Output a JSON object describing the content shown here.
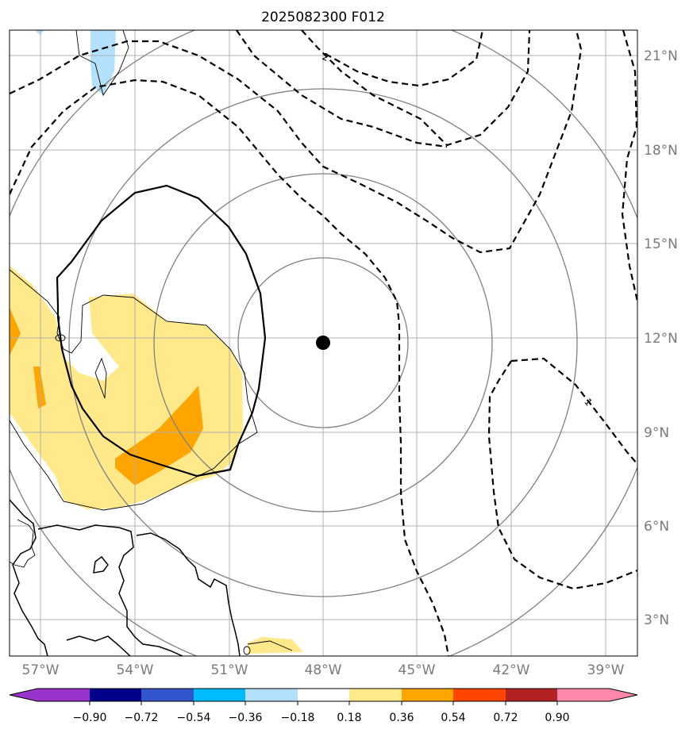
{
  "title": "2025082300 F012",
  "lon_labels": [
    "57°W",
    "54°W",
    "51°W",
    "48°W",
    "45°W",
    "42°W",
    "39°W"
  ],
  "lat_labels": [
    "21°N",
    "18°N",
    "15°N",
    "12°N",
    "9°N",
    "6°N",
    "3°N"
  ],
  "colorbar": {
    "tick_labels": [
      "−0.90",
      "−0.72",
      "−0.54",
      "−0.36",
      "−0.18",
      "0.18",
      "0.36",
      "0.54",
      "0.72",
      "0.90"
    ],
    "colors": [
      "#9933cc",
      "#000088",
      "#3355cc",
      "#00bbff",
      "#b3e0fb",
      "#ffffff",
      "#ffe98a",
      "#ffa500",
      "#ff4500",
      "#b22222",
      "#ff88aa"
    ]
  },
  "contour_labels": {
    "upper": "2",
    "right": "1"
  },
  "colors": {
    "storm_center": "#000000",
    "range_rings": "#808080",
    "grid": "#b0b0b0",
    "contour": "#000000"
  }
}
